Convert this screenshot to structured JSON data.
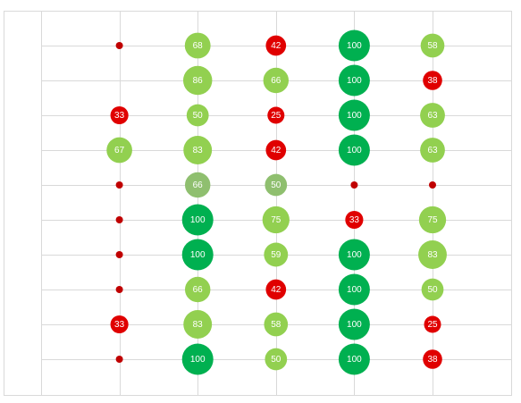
{
  "chart_data": {
    "type": "bubble",
    "title": "",
    "xlabel": "",
    "ylabel": "",
    "grid": true,
    "legend": "none",
    "columns": 6,
    "rows": 10,
    "colors": {
      "high": "#00b050",
      "mid": "#92d050",
      "muted": "#8fbf6f",
      "low": "#e00000",
      "zero": "#c00000"
    },
    "points": [
      {
        "col": 2,
        "row": 1,
        "value": 0,
        "label": "",
        "color": "zero"
      },
      {
        "col": 3,
        "row": 1,
        "value": 68,
        "label": "68",
        "color": "mid"
      },
      {
        "col": 4,
        "row": 1,
        "value": 42,
        "label": "42",
        "color": "low"
      },
      {
        "col": 5,
        "row": 1,
        "value": 100,
        "label": "100",
        "color": "high"
      },
      {
        "col": 6,
        "row": 1,
        "value": 58,
        "label": "58",
        "color": "mid"
      },
      {
        "col": 3,
        "row": 2,
        "value": 86,
        "label": "86",
        "color": "mid"
      },
      {
        "col": 4,
        "row": 2,
        "value": 66,
        "label": "66",
        "color": "mid"
      },
      {
        "col": 5,
        "row": 2,
        "value": 100,
        "label": "100",
        "color": "high"
      },
      {
        "col": 6,
        "row": 2,
        "value": 38,
        "label": "38",
        "color": "low"
      },
      {
        "col": 2,
        "row": 3,
        "value": 33,
        "label": "33",
        "color": "low"
      },
      {
        "col": 3,
        "row": 3,
        "value": 50,
        "label": "50",
        "color": "mid"
      },
      {
        "col": 4,
        "row": 3,
        "value": 25,
        "label": "25",
        "color": "low"
      },
      {
        "col": 5,
        "row": 3,
        "value": 100,
        "label": "100",
        "color": "high"
      },
      {
        "col": 6,
        "row": 3,
        "value": 63,
        "label": "63",
        "color": "mid"
      },
      {
        "col": 2,
        "row": 4,
        "value": 67,
        "label": "67",
        "color": "mid"
      },
      {
        "col": 3,
        "row": 4,
        "value": 83,
        "label": "83",
        "color": "mid"
      },
      {
        "col": 4,
        "row": 4,
        "value": 42,
        "label": "42",
        "color": "low"
      },
      {
        "col": 5,
        "row": 4,
        "value": 100,
        "label": "100",
        "color": "high"
      },
      {
        "col": 6,
        "row": 4,
        "value": 63,
        "label": "63",
        "color": "mid"
      },
      {
        "col": 2,
        "row": 5,
        "value": 0,
        "label": "",
        "color": "zero"
      },
      {
        "col": 3,
        "row": 5,
        "value": 66,
        "label": "66",
        "color": "muted"
      },
      {
        "col": 4,
        "row": 5,
        "value": 50,
        "label": "50",
        "color": "muted"
      },
      {
        "col": 5,
        "row": 5,
        "value": 0,
        "label": "",
        "color": "zero"
      },
      {
        "col": 6,
        "row": 5,
        "value": 0,
        "label": "",
        "color": "zero"
      },
      {
        "col": 2,
        "row": 6,
        "value": 0,
        "label": "",
        "color": "zero"
      },
      {
        "col": 3,
        "row": 6,
        "value": 100,
        "label": "100",
        "color": "high"
      },
      {
        "col": 4,
        "row": 6,
        "value": 75,
        "label": "75",
        "color": "mid"
      },
      {
        "col": 5,
        "row": 6,
        "value": 33,
        "label": "33",
        "color": "low"
      },
      {
        "col": 6,
        "row": 6,
        "value": 75,
        "label": "75",
        "color": "mid"
      },
      {
        "col": 2,
        "row": 7,
        "value": 0,
        "label": "",
        "color": "zero"
      },
      {
        "col": 3,
        "row": 7,
        "value": 100,
        "label": "100",
        "color": "high"
      },
      {
        "col": 4,
        "row": 7,
        "value": 59,
        "label": "59",
        "color": "mid"
      },
      {
        "col": 5,
        "row": 7,
        "value": 100,
        "label": "100",
        "color": "high"
      },
      {
        "col": 6,
        "row": 7,
        "value": 83,
        "label": "83",
        "color": "mid"
      },
      {
        "col": 2,
        "row": 8,
        "value": 0,
        "label": "",
        "color": "zero"
      },
      {
        "col": 3,
        "row": 8,
        "value": 66,
        "label": "66",
        "color": "mid"
      },
      {
        "col": 4,
        "row": 8,
        "value": 42,
        "label": "42",
        "color": "low"
      },
      {
        "col": 5,
        "row": 8,
        "value": 100,
        "label": "100",
        "color": "high"
      },
      {
        "col": 6,
        "row": 8,
        "value": 50,
        "label": "50",
        "color": "mid"
      },
      {
        "col": 2,
        "row": 9,
        "value": 33,
        "label": "33",
        "color": "low"
      },
      {
        "col": 3,
        "row": 9,
        "value": 83,
        "label": "83",
        "color": "mid"
      },
      {
        "col": 4,
        "row": 9,
        "value": 58,
        "label": "58",
        "color": "mid"
      },
      {
        "col": 5,
        "row": 9,
        "value": 100,
        "label": "100",
        "color": "high"
      },
      {
        "col": 6,
        "row": 9,
        "value": 25,
        "label": "25",
        "color": "low"
      },
      {
        "col": 2,
        "row": 10,
        "value": 0,
        "label": "",
        "color": "zero"
      },
      {
        "col": 3,
        "row": 10,
        "value": 100,
        "label": "100",
        "color": "high"
      },
      {
        "col": 4,
        "row": 10,
        "value": 50,
        "label": "50",
        "color": "mid"
      },
      {
        "col": 5,
        "row": 10,
        "value": 100,
        "label": "100",
        "color": "high"
      },
      {
        "col": 6,
        "row": 10,
        "value": 38,
        "label": "38",
        "color": "low"
      }
    ]
  }
}
